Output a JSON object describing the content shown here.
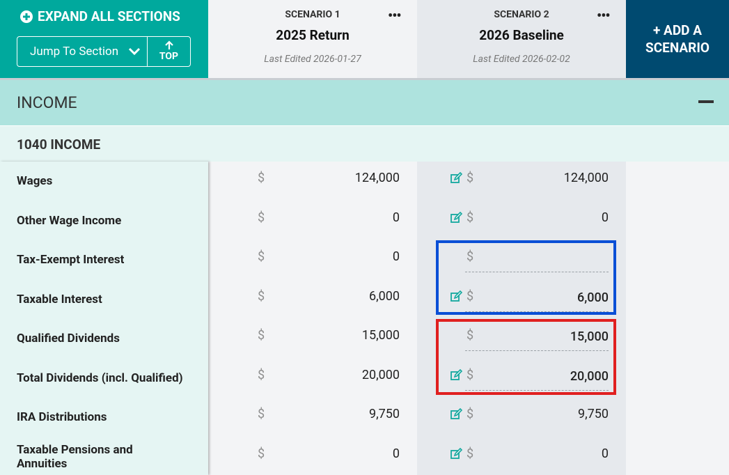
{
  "toolbar": {
    "expand_all": "EXPAND ALL SECTIONS",
    "jump_to": "Jump To Section",
    "top": "TOP"
  },
  "scenarios": [
    {
      "label": "SCENARIO 1",
      "name": "2025 Return",
      "last_edited": "Last Edited 2026-01-27"
    },
    {
      "label": "SCENARIO 2",
      "name": "2026 Baseline",
      "last_edited": "Last Edited 2026-02-02"
    }
  ],
  "add_scenario": "+ ADD A SCENARIO",
  "section": {
    "title": "INCOME",
    "subsection": "1040 INCOME"
  },
  "currency_symbol": "$",
  "rows": [
    {
      "label": "Wages",
      "values": [
        "124,000",
        "124,000"
      ]
    },
    {
      "label": "Other Wage Income",
      "values": [
        "0",
        "0"
      ]
    },
    {
      "label": "Tax-Exempt Interest",
      "values": [
        "0",
        null
      ]
    },
    {
      "label": "Taxable Interest",
      "values": [
        "6,000",
        "6,000"
      ]
    },
    {
      "label": "Qualified Dividends",
      "values": [
        "15,000",
        "15,000"
      ]
    },
    {
      "label": "Total Dividends (incl. Qualified)",
      "values": [
        "20,000",
        "20,000"
      ]
    },
    {
      "label": "IRA Distributions",
      "values": [
        "9,750",
        "9,750"
      ]
    },
    {
      "label": "Taxable Pensions and Annuities",
      "values": [
        "0",
        "0"
      ]
    }
  ]
}
